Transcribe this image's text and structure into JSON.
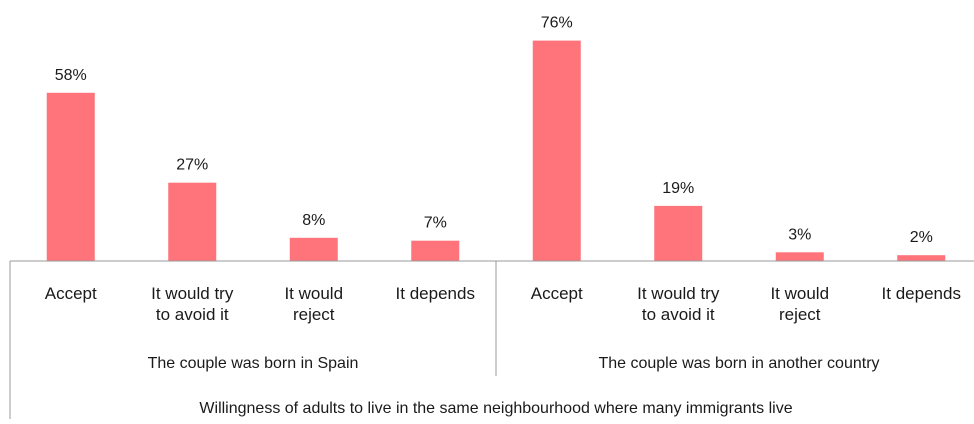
{
  "chart_data": {
    "type": "bar",
    "title": "",
    "xlabel": "Willingness of adults to live in the same neighbourhood where many immigrants live",
    "ylabel": "",
    "ylim": [
      0,
      80
    ],
    "grid": false,
    "legend": "none",
    "bar_color": "#FF737A",
    "axis_color": "#9a9a9a",
    "value_suffix": "%",
    "groups": [
      {
        "label": "The couple was born in Spain",
        "categories": [
          [
            "Accept"
          ],
          [
            "It would try",
            "to avoid it"
          ],
          [
            "It would",
            "reject"
          ],
          [
            "It depends"
          ]
        ],
        "values": [
          58,
          27,
          8,
          7
        ]
      },
      {
        "label": "The couple was born in another country",
        "categories": [
          [
            "Accept"
          ],
          [
            "It would try",
            "to avoid it"
          ],
          [
            "It would",
            "reject"
          ],
          [
            "It depends"
          ]
        ],
        "values": [
          76,
          19,
          3,
          2
        ]
      }
    ]
  }
}
